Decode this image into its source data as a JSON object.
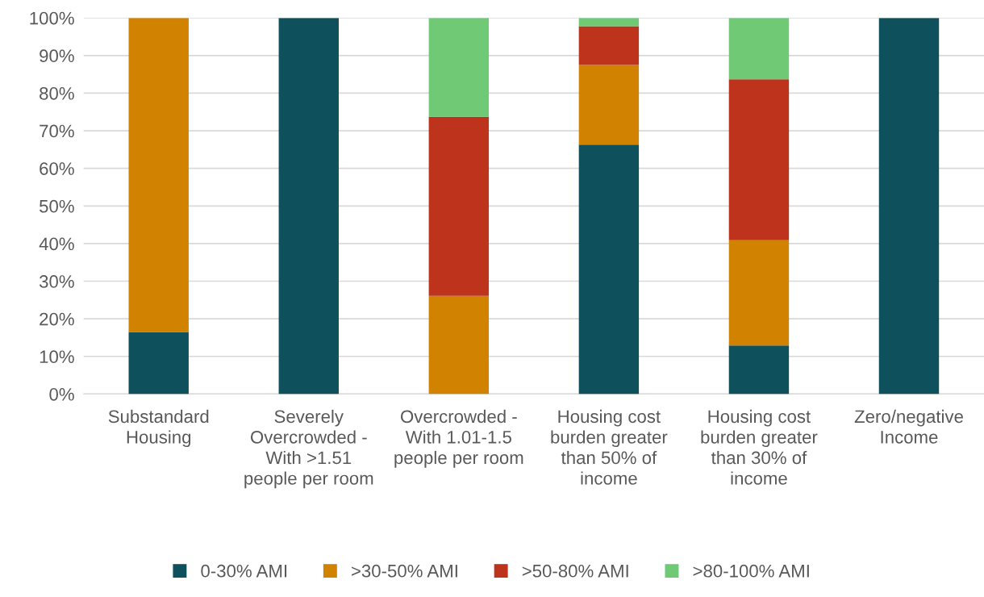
{
  "chart_data": {
    "type": "bar",
    "stacked": true,
    "categories": [
      "Substandard Housing",
      "Severely Overcrowded - With >1.51 people per room",
      "Overcrowded - With 1.01-1.5 people per room",
      "Housing cost burden greater than 50% of income",
      "Housing cost burden greater than 30% of income",
      "Zero/negative Income"
    ],
    "series": [
      {
        "name": "0-30% AMI",
        "color": "#0e515c",
        "values": [
          16.5,
          100,
          0,
          66.3,
          12.9,
          100
        ]
      },
      {
        "name": ">30-50% AMI",
        "color": "#d18300",
        "values": [
          83.5,
          0,
          26.1,
          21.2,
          28.0,
          0
        ]
      },
      {
        "name": ">50-80% AMI",
        "color": "#bd331b",
        "values": [
          0,
          0,
          47.6,
          10.3,
          42.8,
          0
        ]
      },
      {
        "name": ">80-100% AMI",
        "color": "#6fc975",
        "values": [
          0,
          0,
          26.3,
          2.2,
          16.3,
          0
        ]
      }
    ],
    "ylim": [
      0,
      100
    ],
    "yticks": [
      {
        "value": 0,
        "label": "0%"
      },
      {
        "value": 10,
        "label": "10%"
      },
      {
        "value": 20,
        "label": "20%"
      },
      {
        "value": 30,
        "label": "30%"
      },
      {
        "value": 40,
        "label": "40%"
      },
      {
        "value": 50,
        "label": "50%"
      },
      {
        "value": 60,
        "label": "60%"
      },
      {
        "value": 70,
        "label": "70%"
      },
      {
        "value": 80,
        "label": "80%"
      },
      {
        "value": 90,
        "label": "90%"
      },
      {
        "value": 100,
        "label": "100%"
      }
    ],
    "grid": "y",
    "legend": "bottom"
  }
}
